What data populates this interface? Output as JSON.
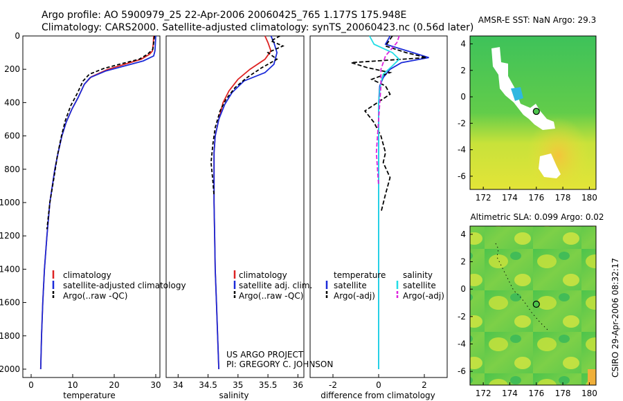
{
  "header": {
    "line1": "Argo profile: AO 5900979_25 22-Apr-2006 20060425_765 1.177S 175.948E",
    "line2": "Climatology: CARS2000. Satellite-adjusted climatology: synTS_20060423.nc (0.56d later)"
  },
  "colors": {
    "climatology": "#dd2222",
    "satellite": "#1a2ad8",
    "argo": "#000000",
    "sal_satellite": "#22dde6",
    "sal_argo": "#dd22dd",
    "ocean_green": "#4cc44c"
  },
  "chart_data": [
    {
      "type": "line",
      "id": "temperature",
      "xlabel": "temperature",
      "ylabel": "",
      "xlim": [
        -2,
        31
      ],
      "ylim": [
        2050,
        0
      ],
      "xticks": [
        0,
        10,
        20,
        30
      ],
      "yticks": [
        0,
        200,
        400,
        600,
        800,
        1000,
        1200,
        1400,
        1600,
        1800,
        2000
      ],
      "legend": [
        "climatology",
        "satellite-adjusted climatology",
        "Argo(..raw -QC)"
      ],
      "series": [
        {
          "name": "climatology",
          "color": "#dd2222",
          "dash": "",
          "x": [
            29.5,
            29.4,
            29.2,
            28.5,
            26.5,
            22.5,
            18.5,
            14.5,
            12.8,
            11.3,
            9.8,
            8.4,
            7.4,
            6.5,
            5.7,
            4.5,
            3.8,
            3.2,
            2.8,
            2.5,
            2.3
          ],
          "y": [
            0,
            50,
            90,
            110,
            140,
            170,
            200,
            245,
            290,
            370,
            440,
            520,
            600,
            700,
            800,
            1000,
            1200,
            1400,
            1600,
            1800,
            2000
          ]
        },
        {
          "name": "satellite-adjusted climatology",
          "color": "#1a2ad8",
          "dash": "",
          "x": [
            30.0,
            29.9,
            29.8,
            29.5,
            27.0,
            22.5,
            18.0,
            14.2,
            12.8,
            11.3,
            9.8,
            8.4,
            7.4,
            6.5,
            5.7,
            4.5,
            3.8,
            3.2,
            2.8,
            2.5,
            2.3
          ],
          "y": [
            0,
            50,
            90,
            120,
            150,
            180,
            210,
            250,
            290,
            370,
            440,
            520,
            600,
            700,
            800,
            1000,
            1200,
            1400,
            1600,
            1800,
            2000
          ]
        },
        {
          "name": "Argo(..raw -QC)",
          "color": "#000000",
          "dash": "5,3",
          "x": [
            29.7,
            29.5,
            29.3,
            28.0,
            26.0,
            22.0,
            17.5,
            14.0,
            12.5,
            11.0,
            9.5,
            8.2,
            7.3,
            6.3,
            5.5,
            4.5,
            3.8
          ],
          "y": [
            0,
            40,
            80,
            110,
            140,
            165,
            195,
            230,
            270,
            350,
            420,
            510,
            600,
            720,
            850,
            1000,
            1160
          ]
        }
      ]
    },
    {
      "type": "line",
      "id": "salinity",
      "xlabel": "salinity",
      "ylabel": "",
      "xlim": [
        33.8,
        36.1
      ],
      "ylim": [
        2050,
        0
      ],
      "xticks": [
        34,
        34.5,
        35,
        35.5,
        36
      ],
      "legend": [
        "climatology",
        "satellite adj. clim.",
        "Argo(..raw -QC)"
      ],
      "series": [
        {
          "name": "climatology",
          "color": "#dd2222",
          "dash": "",
          "x": [
            35.45,
            35.5,
            35.55,
            35.45,
            35.2,
            35.0,
            34.85,
            34.75,
            34.68,
            34.62,
            34.6,
            34.6,
            34.6,
            34.61,
            34.62,
            34.64,
            34.66,
            34.68
          ],
          "y": [
            0,
            40,
            90,
            140,
            200,
            260,
            330,
            400,
            500,
            600,
            700,
            800,
            1000,
            1200,
            1400,
            1600,
            1800,
            2000
          ]
        },
        {
          "name": "satellite adj. clim.",
          "color": "#1a2ad8",
          "dash": "",
          "x": [
            35.55,
            35.6,
            35.65,
            35.6,
            35.45,
            35.1,
            34.9,
            34.78,
            34.68,
            34.62,
            34.6,
            34.6,
            34.6,
            34.61,
            34.62,
            34.64,
            34.66,
            34.68
          ],
          "y": [
            0,
            40,
            100,
            170,
            220,
            270,
            340,
            410,
            500,
            600,
            700,
            800,
            1000,
            1200,
            1400,
            1600,
            1800,
            2000
          ]
        },
        {
          "name": "Argo(..raw -QC)",
          "color": "#000000",
          "dash": "5,3",
          "x": [
            35.7,
            35.55,
            35.75,
            35.5,
            35.65,
            35.4,
            35.15,
            34.95,
            34.8,
            34.7,
            34.62,
            34.58,
            34.55,
            34.58,
            34.6
          ],
          "y": [
            0,
            30,
            60,
            100,
            140,
            190,
            250,
            310,
            380,
            450,
            550,
            650,
            760,
            870,
            960
          ]
        }
      ]
    },
    {
      "type": "line",
      "id": "difference",
      "xlabel": "difference from climatology",
      "ylabel": "",
      "xlim": [
        -3,
        3
      ],
      "ylim": [
        2050,
        0
      ],
      "xticks": [
        -2,
        0,
        2
      ],
      "legend": [
        "temperature",
        "satellite",
        "Argo(-adj)",
        "salinity",
        "satellite",
        "Argo(-adj)"
      ],
      "series": [
        {
          "name": "temperature satellite",
          "color": "#1a2ad8",
          "dash": "",
          "x": [
            0.5,
            0.3,
            1.5,
            2.2,
            1.0,
            0.5,
            0.2,
            0.05,
            0,
            0,
            0,
            0,
            0,
            0
          ],
          "y": [
            0,
            50,
            100,
            130,
            160,
            200,
            250,
            300,
            400,
            600,
            1000,
            1400,
            1800,
            2000
          ]
        },
        {
          "name": "temperature Argo(-adj)",
          "color": "#000000",
          "dash": "6,3",
          "x": [
            0.6,
            0.3,
            1.2,
            2.1,
            -1.2,
            -0.5,
            0.5,
            -0.3,
            0.3,
            0.5,
            -0.6,
            -0.2,
            0.1,
            0.3,
            0.2,
            0.5,
            0.3,
            0.1
          ],
          "y": [
            0,
            60,
            100,
            130,
            160,
            190,
            220,
            260,
            300,
            350,
            450,
            520,
            600,
            700,
            760,
            850,
            950,
            1060
          ]
        },
        {
          "name": "salinity satellite",
          "color": "#22dde6",
          "dash": "",
          "x": [
            -0.4,
            -0.2,
            0.6,
            0.9,
            0.6,
            0.2,
            0.1,
            0.05,
            0,
            0,
            0,
            0,
            0
          ],
          "y": [
            0,
            50,
            100,
            140,
            180,
            230,
            280,
            330,
            400,
            600,
            1000,
            1600,
            2000
          ]
        },
        {
          "name": "salinity Argo(-adj)",
          "color": "#dd22dd",
          "dash": "6,3",
          "x": [
            0.9,
            0.8,
            0.3,
            0.1,
            0.1,
            0.0,
            -0.1,
            0.0
          ],
          "y": [
            0,
            40,
            120,
            200,
            300,
            500,
            700,
            900
          ]
        }
      ]
    },
    {
      "type": "heatmap",
      "id": "sst",
      "title": "AMSR-E SST: NaN Argo: 29.3",
      "xlim": [
        171,
        180.5
      ],
      "ylim": [
        -7,
        4.6
      ],
      "xticks": [
        172,
        174,
        176,
        178,
        180
      ],
      "yticks": [
        4,
        2,
        0,
        -2,
        -4,
        -6
      ],
      "marker": [
        176.0,
        -1.1
      ]
    },
    {
      "type": "heatmap",
      "id": "sla",
      "title": "Altimetric SLA: 0.099 Argo: 0.02",
      "xlim": [
        171,
        180.5
      ],
      "ylim": [
        -7,
        4.6
      ],
      "xticks": [
        172,
        174,
        176,
        178,
        180
      ],
      "yticks": [
        4,
        2,
        0,
        -2,
        -4,
        -6
      ],
      "marker": [
        176.0,
        -1.1
      ]
    }
  ],
  "labels": {
    "leg_clim": "climatology",
    "leg_sat_t": "satellite-adjusted climatology",
    "leg_argo_t": "Argo(..raw -QC)",
    "leg_sat_s": "satellite adj. clim.",
    "leg_argo_s": "Argo(..raw -QC)",
    "leg_temperature": "temperature",
    "leg_salinity": "salinity",
    "leg_satellite": "satellite",
    "leg_argo_adj": "Argo(-adj)",
    "project1": "US ARGO PROJECT",
    "project2": "PI: GREGORY C. JOHNSON",
    "credit": "CSIRO 29-Apr-2006 08:32:17"
  }
}
